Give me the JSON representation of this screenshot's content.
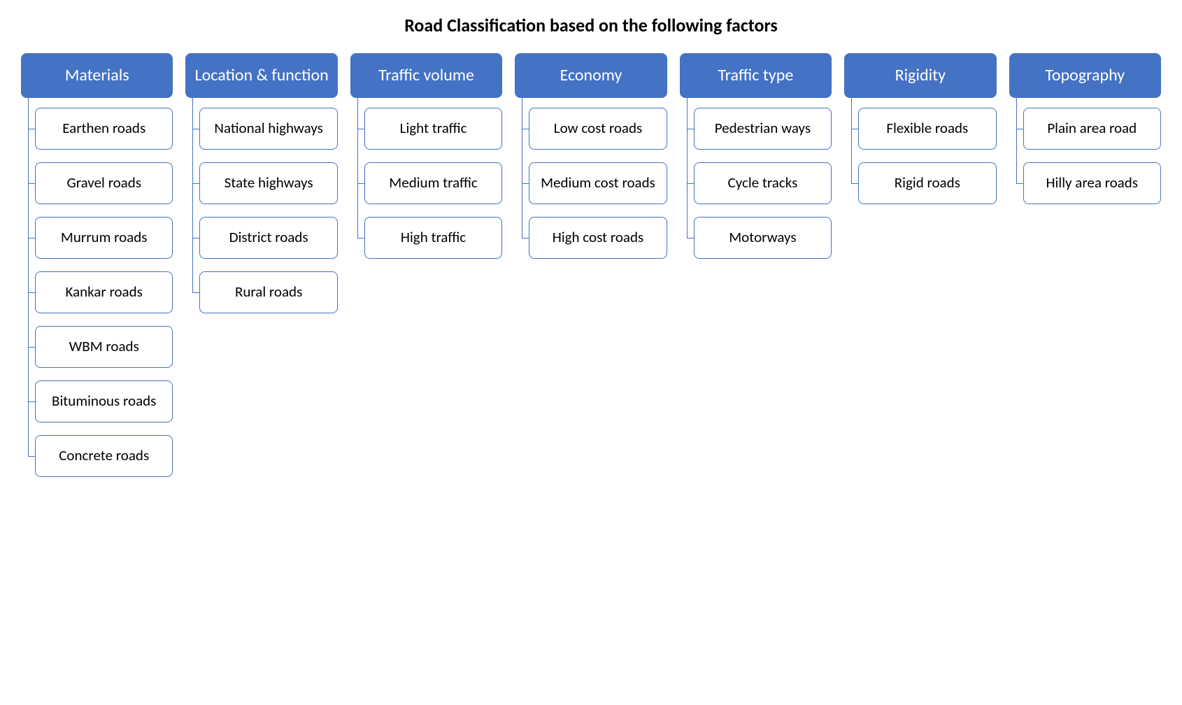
{
  "title": "Road Classification based on the following factors",
  "styling": {
    "type": "tree",
    "header_bg": "#4472c4",
    "header_fg": "#ffffff",
    "item_border": "#4472c4",
    "item_bg": "#ffffff",
    "item_fg": "#000000",
    "title_color": "#000000",
    "background_color": "#ffffff",
    "font_family": "Calibri, Arial, sans-serif",
    "title_fontsize": 26,
    "header_fontsize": 24,
    "item_fontsize": 21,
    "border_radius": 8,
    "column_gap": 18,
    "item_gap": 18,
    "connector_color": "#4472c4"
  },
  "columns": [
    {
      "header": "Materials",
      "items": [
        "Earthen roads",
        "Gravel roads",
        "Murrum roads",
        "Kankar roads",
        "WBM roads",
        "Bituminous roads",
        "Concrete roads"
      ]
    },
    {
      "header": "Location & function",
      "items": [
        "National highways",
        "State highways",
        "District roads",
        "Rural roads"
      ]
    },
    {
      "header": "Traffic volume",
      "items": [
        "Light traffic",
        "Medium traffic",
        "High traffic"
      ]
    },
    {
      "header": "Economy",
      "items": [
        "Low cost roads",
        "Medium cost roads",
        "High cost roads"
      ]
    },
    {
      "header": "Traffic type",
      "items": [
        "Pedestrian ways",
        "Cycle tracks",
        "Motorways"
      ]
    },
    {
      "header": "Rigidity",
      "items": [
        "Flexible roads",
        "Rigid roads"
      ]
    },
    {
      "header": "Topography",
      "items": [
        "Plain area road",
        "Hilly area roads"
      ]
    }
  ]
}
